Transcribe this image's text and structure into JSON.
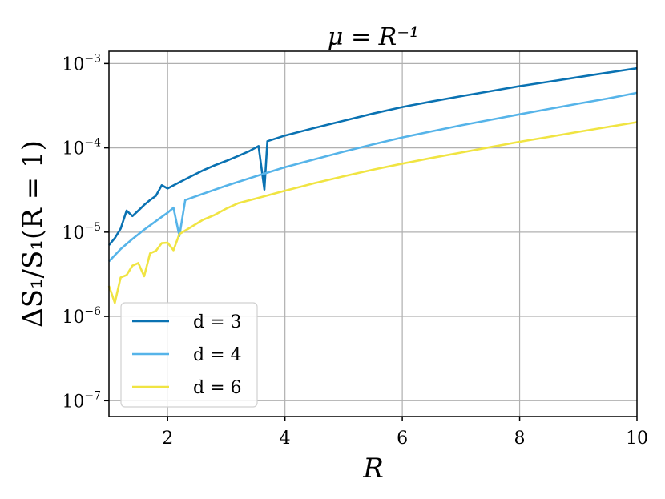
{
  "chart_data": {
    "type": "line",
    "title": "μ = R⁻¹",
    "xlabel": "R",
    "ylabel": "ΔS₁/S₁(R = 1)",
    "xlim": [
      1,
      10
    ],
    "ylim": [
      6.5e-08,
      0.0014
    ],
    "yscale": "log",
    "grid": true,
    "legend_position": "lower-left",
    "x_ticks": [
      {
        "value": 2,
        "label": "2"
      },
      {
        "value": 4,
        "label": "4"
      },
      {
        "value": 6,
        "label": "6"
      },
      {
        "value": 8,
        "label": "8"
      },
      {
        "value": 10,
        "label": "10"
      }
    ],
    "y_ticks": [
      {
        "value": 1e-07,
        "base": "10",
        "exp": "−7"
      },
      {
        "value": 1e-06,
        "base": "10",
        "exp": "−6"
      },
      {
        "value": 1e-05,
        "base": "10",
        "exp": "−5"
      },
      {
        "value": 0.0001,
        "base": "10",
        "exp": "−4"
      },
      {
        "value": 0.001,
        "base": "10",
        "exp": "−3"
      }
    ],
    "series": [
      {
        "name": "d = 3",
        "color": "#0a72b2",
        "points": [
          [
            1.0,
            7e-06
          ],
          [
            1.1,
            8.5e-06
          ],
          [
            1.2,
            1.1e-05
          ],
          [
            1.3,
            1.8e-05
          ],
          [
            1.4,
            1.55e-05
          ],
          [
            1.5,
            1.8e-05
          ],
          [
            1.6,
            2.1e-05
          ],
          [
            1.7,
            2.4e-05
          ],
          [
            1.8,
            2.7e-05
          ],
          [
            1.9,
            3.6e-05
          ],
          [
            2.0,
            3.3e-05
          ],
          [
            2.2,
            3.9e-05
          ],
          [
            2.4,
            4.6e-05
          ],
          [
            2.6,
            5.4e-05
          ],
          [
            2.8,
            6.2e-05
          ],
          [
            3.0,
            7e-05
          ],
          [
            3.2,
            8e-05
          ],
          [
            3.4,
            9.2e-05
          ],
          [
            3.55,
            0.000105
          ],
          [
            3.65,
            3.2e-05
          ],
          [
            3.7,
            0.00012
          ],
          [
            4.0,
            0.00014
          ],
          [
            4.5,
            0.000172
          ],
          [
            5.0,
            0.00021
          ],
          [
            5.5,
            0.000255
          ],
          [
            6.0,
            0.000305
          ],
          [
            6.5,
            0.000355
          ],
          [
            7.0,
            0.00041
          ],
          [
            7.5,
            0.00047
          ],
          [
            8.0,
            0.00054
          ],
          [
            8.5,
            0.00061
          ],
          [
            9.0,
            0.00069
          ],
          [
            9.5,
            0.00078
          ],
          [
            10.0,
            0.00088
          ]
        ]
      },
      {
        "name": "d = 4",
        "color": "#56b4e9",
        "points": [
          [
            1.0,
            4.5e-06
          ],
          [
            1.2,
            6.3e-06
          ],
          [
            1.4,
            8.3e-06
          ],
          [
            1.6,
            1.07e-05
          ],
          [
            1.8,
            1.35e-05
          ],
          [
            2.0,
            1.7e-05
          ],
          [
            2.1,
            1.95e-05
          ],
          [
            2.2,
            9e-06
          ],
          [
            2.3,
            2.4e-05
          ],
          [
            2.6,
            2.85e-05
          ],
          [
            3.0,
            3.55e-05
          ],
          [
            3.5,
            4.6e-05
          ],
          [
            4.0,
            5.9e-05
          ],
          [
            4.5,
            7.3e-05
          ],
          [
            5.0,
            9e-05
          ],
          [
            5.5,
            0.00011
          ],
          [
            6.0,
            0.000133
          ],
          [
            6.5,
            0.000157
          ],
          [
            7.0,
            0.000185
          ],
          [
            7.5,
            0.000215
          ],
          [
            8.0,
            0.00025
          ],
          [
            8.5,
            0.00029
          ],
          [
            9.0,
            0.000335
          ],
          [
            9.5,
            0.000385
          ],
          [
            10.0,
            0.00045
          ]
        ]
      },
      {
        "name": "d = 6",
        "color": "#f0e442",
        "points": [
          [
            1.0,
            2.3e-06
          ],
          [
            1.1,
            1.45e-06
          ],
          [
            1.2,
            2.9e-06
          ],
          [
            1.3,
            3.1e-06
          ],
          [
            1.4,
            4e-06
          ],
          [
            1.5,
            4.3e-06
          ],
          [
            1.6,
            3e-06
          ],
          [
            1.7,
            5.6e-06
          ],
          [
            1.8,
            6e-06
          ],
          [
            1.9,
            7.4e-06
          ],
          [
            2.0,
            7.5e-06
          ],
          [
            2.1,
            6.1e-06
          ],
          [
            2.2,
            9.5e-06
          ],
          [
            2.4,
            1.15e-05
          ],
          [
            2.6,
            1.4e-05
          ],
          [
            2.8,
            1.6e-05
          ],
          [
            3.0,
            1.9e-05
          ],
          [
            3.2,
            2.2e-05
          ],
          [
            3.5,
            2.5e-05
          ],
          [
            4.0,
            3.1e-05
          ],
          [
            4.5,
            3.8e-05
          ],
          [
            5.0,
            4.6e-05
          ],
          [
            5.5,
            5.5e-05
          ],
          [
            6.0,
            6.5e-05
          ],
          [
            6.5,
            7.6e-05
          ],
          [
            7.0,
            8.8e-05
          ],
          [
            7.5,
            0.000102
          ],
          [
            8.0,
            0.000118
          ],
          [
            8.5,
            0.000135
          ],
          [
            9.0,
            0.000155
          ],
          [
            9.5,
            0.000177
          ],
          [
            10.0,
            0.000202
          ]
        ]
      }
    ]
  }
}
